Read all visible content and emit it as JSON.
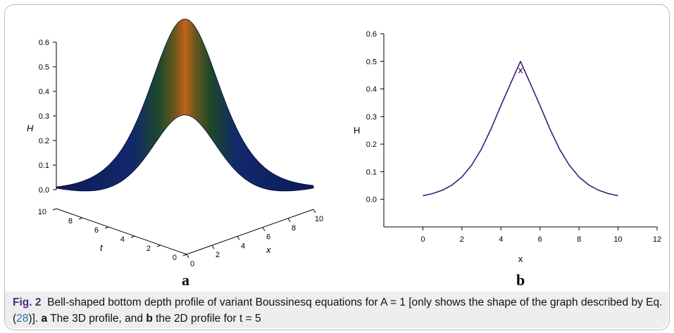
{
  "chart_data": [
    {
      "type": "surface",
      "panel_label": "a",
      "zlabel": "H",
      "xlabel": "x",
      "ylabel": "t",
      "z_ticks": [
        "0.0",
        "0.1",
        "0.2",
        "0.3",
        "0.4",
        "0.5",
        "0.6"
      ],
      "t_ticks": [
        "10",
        "8",
        "6",
        "4",
        "2",
        "0"
      ],
      "x_ticks": [
        "0",
        "2",
        "4",
        "6",
        "8",
        "10"
      ],
      "peak_value": 0.6,
      "peak_x": 5,
      "colors": {
        "low": "#0d1a5a",
        "mid": "#1f5a2a",
        "high": "#c8641a"
      }
    },
    {
      "type": "line",
      "panel_label": "b",
      "xlabel": "x",
      "ylabel": "H",
      "xlim": [
        -2,
        12
      ],
      "ylim": [
        -0.1,
        0.6
      ],
      "x_ticks": [
        "0",
        "2",
        "4",
        "6",
        "8",
        "10",
        "12"
      ],
      "y_ticks": [
        "0.0",
        "0.1",
        "0.2",
        "0.3",
        "0.4",
        "0.5",
        "0.6"
      ],
      "series": [
        {
          "color": "#3b1a7a",
          "x": [
            0,
            0.5,
            1,
            1.5,
            2,
            2.5,
            3,
            3.5,
            4,
            4.5,
            5,
            5.5,
            6,
            6.5,
            7,
            7.5,
            8,
            8.5,
            9,
            9.5,
            10
          ],
          "y": [
            0.013,
            0.021,
            0.033,
            0.052,
            0.081,
            0.124,
            0.182,
            0.256,
            0.34,
            0.42,
            0.5,
            0.42,
            0.34,
            0.256,
            0.182,
            0.124,
            0.081,
            0.052,
            0.033,
            0.021,
            0.013
          ]
        }
      ]
    }
  ],
  "caption": {
    "fig_label": "Fig. 2",
    "text_1": "Bell-shaped bottom depth profile of variant Boussinesq equations for A = 1 [only shows the shape of the graph described by Eq. (",
    "ref": "28",
    "text_2": ")]. ",
    "a_label": "a",
    "text_3": " The 3D profile, and ",
    "b_label": "b",
    "text_4": " the 2D profile for t = 5"
  }
}
